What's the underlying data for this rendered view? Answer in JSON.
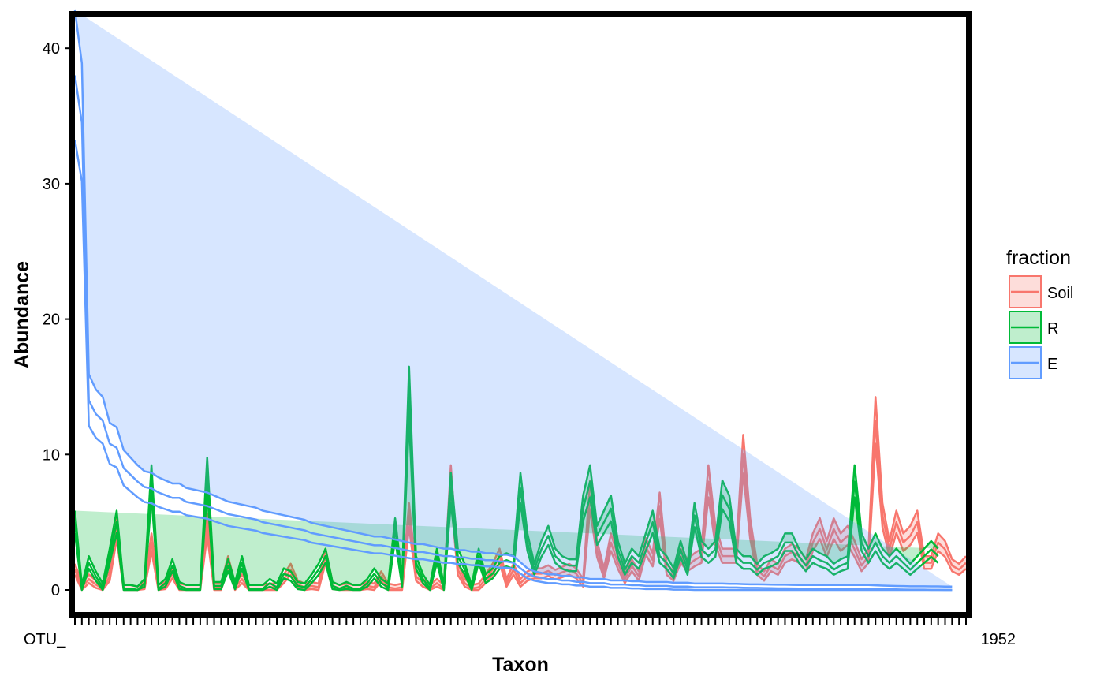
{
  "chart_data": {
    "type": "area",
    "title": "",
    "xlabel": "Taxon",
    "ylabel": "Abundance",
    "ylim": [
      0,
      40
    ],
    "yticks": [
      0,
      10,
      20,
      30,
      40
    ],
    "grid": false,
    "legend_position": "right",
    "legend_title": "fraction",
    "x_first_label": "OTU_",
    "x_last_label": "1952",
    "series": [
      {
        "name": "Soil",
        "color": "#F8766D",
        "fill": "#F8766D",
        "values": [
          1.5,
          0.2,
          0.8,
          0.4,
          0.1,
          1.0,
          4.5,
          0.1,
          0.1,
          0.0,
          0.3,
          3.5,
          0.1,
          0.3,
          1.2,
          0.2,
          0.1,
          0.1,
          0.1,
          4.8,
          0.2,
          0.2,
          2.0,
          0.2,
          0.8,
          0.1,
          0.1,
          0.1,
          0.2,
          0.2,
          0.8,
          1.5,
          0.4,
          0.2,
          0.3,
          0.2,
          2.5,
          0.3,
          0.1,
          0.2,
          0.1,
          0.1,
          0.3,
          0.2,
          1.0,
          0.2,
          0.1,
          0.2,
          5.5,
          1.0,
          0.5,
          0.1,
          0.5,
          0.1,
          8.0,
          1.5,
          0.5,
          0.1,
          0.2,
          0.8,
          1.5,
          2.5,
          0.5,
          1.5,
          0.5,
          1.0,
          1.2,
          1.2,
          1.4,
          1.1,
          1.3,
          1.5,
          1.2,
          0.5,
          7.0,
          3.0,
          1.2,
          3.5,
          2.0,
          0.8,
          1.8,
          1.0,
          3.2,
          2.2,
          6.2,
          1.5,
          1.0,
          2.5,
          1.8,
          2.2,
          2.5,
          8.0,
          4.0,
          2.5,
          2.5,
          2.5,
          10.0,
          4.5,
          1.5,
          1.0,
          1.8,
          1.5,
          2.5,
          2.8,
          2.5,
          1.8,
          3.5,
          4.5,
          3.0,
          4.5,
          3.5,
          4.0,
          3.0,
          1.8,
          2.5,
          12.5,
          5.5,
          3.0,
          5.0,
          3.5,
          4.0,
          5.0,
          2.0,
          2.0,
          3.5,
          3.0,
          1.8,
          1.5,
          2.0
        ]
      },
      {
        "name": "R",
        "color": "#00BA38",
        "fill": "#00BA38",
        "values": [
          5.0,
          0.1,
          2.0,
          1.0,
          0.2,
          2.5,
          5.0,
          0.1,
          0.1,
          0.0,
          0.5,
          8.0,
          0.1,
          0.5,
          1.8,
          0.3,
          0.1,
          0.1,
          0.1,
          8.5,
          0.3,
          0.3,
          1.8,
          0.3,
          2.0,
          0.1,
          0.1,
          0.1,
          0.5,
          0.2,
          1.2,
          1.0,
          0.3,
          0.2,
          0.8,
          1.5,
          2.5,
          0.3,
          0.1,
          0.3,
          0.1,
          0.1,
          0.5,
          1.2,
          0.5,
          0.2,
          4.5,
          0.5,
          14.5,
          2.0,
          0.8,
          0.1,
          2.5,
          0.1,
          7.5,
          2.5,
          1.5,
          0.1,
          2.5,
          0.8,
          1.2,
          2.0,
          2.2,
          2.0,
          7.5,
          3.5,
          1.5,
          3.0,
          4.0,
          2.5,
          2.0,
          1.8,
          1.8,
          6.0,
          8.0,
          4.0,
          5.0,
          6.0,
          3.0,
          1.5,
          2.5,
          2.0,
          3.5,
          5.0,
          2.5,
          2.0,
          1.2,
          3.0,
          1.5,
          5.5,
          3.0,
          2.5,
          3.0,
          7.0,
          6.0,
          2.5,
          2.0,
          2.0,
          1.5,
          2.0,
          2.2,
          2.5,
          3.5,
          3.5,
          2.5,
          1.8,
          2.5,
          2.2,
          2.0,
          1.5,
          1.8,
          2.0,
          8.0,
          3.5,
          2.5,
          3.5,
          2.5,
          2.0,
          2.5,
          2.0,
          1.5,
          2.0,
          2.5,
          3.0,
          2.5
        ]
      },
      {
        "name": "E",
        "color": "#619CFF",
        "fill": "#619CFF",
        "values": [
          38.0,
          34.5,
          14.0,
          13.0,
          12.5,
          10.8,
          10.5,
          9.0,
          8.5,
          8.0,
          7.6,
          7.5,
          7.2,
          7.0,
          6.8,
          6.8,
          6.5,
          6.4,
          6.3,
          6.2,
          6.0,
          5.8,
          5.6,
          5.5,
          5.4,
          5.3,
          5.2,
          5.0,
          4.9,
          4.8,
          4.7,
          4.6,
          4.5,
          4.4,
          4.2,
          4.1,
          4.0,
          3.9,
          3.8,
          3.7,
          3.6,
          3.5,
          3.4,
          3.3,
          3.3,
          3.2,
          3.1,
          3.0,
          2.9,
          2.8,
          2.8,
          2.7,
          2.6,
          2.5,
          2.5,
          2.4,
          2.4,
          2.3,
          2.3,
          2.2,
          2.2,
          2.1,
          2.1,
          2.0,
          1.6,
          1.2,
          1.0,
          0.9,
          0.8,
          0.8,
          0.7,
          0.7,
          0.6,
          0.6,
          0.5,
          0.5,
          0.5,
          0.4,
          0.4,
          0.4,
          0.35,
          0.35,
          0.3,
          0.3,
          0.3,
          0.3,
          0.25,
          0.25,
          0.25,
          0.2,
          0.2,
          0.2,
          0.2,
          0.2,
          0.18,
          0.18,
          0.16,
          0.15,
          0.15,
          0.14,
          0.13,
          0.12,
          0.12,
          0.11,
          0.1,
          0.1,
          0.1,
          0.1,
          0.1,
          0.1,
          0.1,
          0.1,
          0.1,
          0.1,
          0.1,
          0.08,
          0.06,
          0.05,
          0.04,
          0.03,
          0.02,
          0.02,
          0.02,
          0.01,
          0.01,
          0.0,
          0.0
        ]
      }
    ]
  }
}
